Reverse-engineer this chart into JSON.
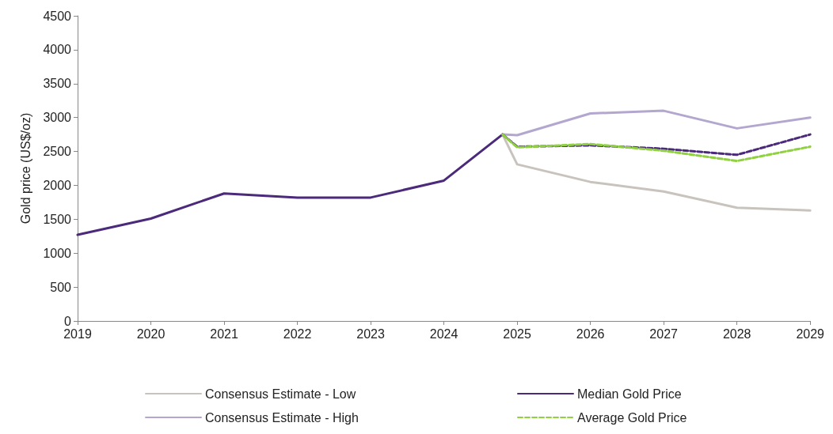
{
  "chart_data": {
    "type": "line",
    "ylabel": "Gold price (US$/oz)",
    "xlim": [
      2019,
      2029
    ],
    "xticks": [
      2019,
      2020,
      2021,
      2022,
      2023,
      2024,
      2025,
      2026,
      2027,
      2028,
      2029
    ],
    "ylim": [
      0,
      4500
    ],
    "yticks": [
      0,
      500,
      1000,
      1500,
      2000,
      2500,
      3000,
      3500,
      4000,
      4500
    ],
    "grid": false,
    "legend": "bottom",
    "marker": "none",
    "series": [
      {
        "name": "Consensus Estimate - Low",
        "color": "#c9c3bd",
        "line_style": "solid",
        "x": [
          2024.8,
          2025,
          2026,
          2027,
          2028,
          2029
        ],
        "values": [
          2750,
          2310,
          2050,
          1910,
          1670,
          1630
        ]
      },
      {
        "name": "Median Gold Price",
        "color": "#4b2a7b",
        "line_style": "solid",
        "x": [
          2019,
          2020,
          2021,
          2022,
          2023,
          2024,
          2024.8
        ],
        "values": [
          1270,
          1510,
          1880,
          1820,
          1820,
          2070,
          2750
        ]
      },
      {
        "name": "Consensus Estimate - High",
        "color": "#b3a7cf",
        "line_style": "solid",
        "x": [
          2024.8,
          2025,
          2026,
          2027,
          2028,
          2029
        ],
        "values": [
          2750,
          2740,
          3060,
          3100,
          2840,
          3000
        ]
      },
      {
        "color": "#4b2a7b",
        "line_style": "dashed",
        "x": [
          2024.8,
          2025,
          2026,
          2027,
          2028,
          2029
        ],
        "values": [
          2750,
          2570,
          2590,
          2540,
          2450,
          2750
        ]
      },
      {
        "name": "Average Gold Price",
        "color": "#8fd13f",
        "line_style": "dashed",
        "x": [
          2024.8,
          2025,
          2026,
          2027,
          2028,
          2029
        ],
        "values": [
          2750,
          2560,
          2610,
          2510,
          2360,
          2570
        ]
      }
    ]
  }
}
